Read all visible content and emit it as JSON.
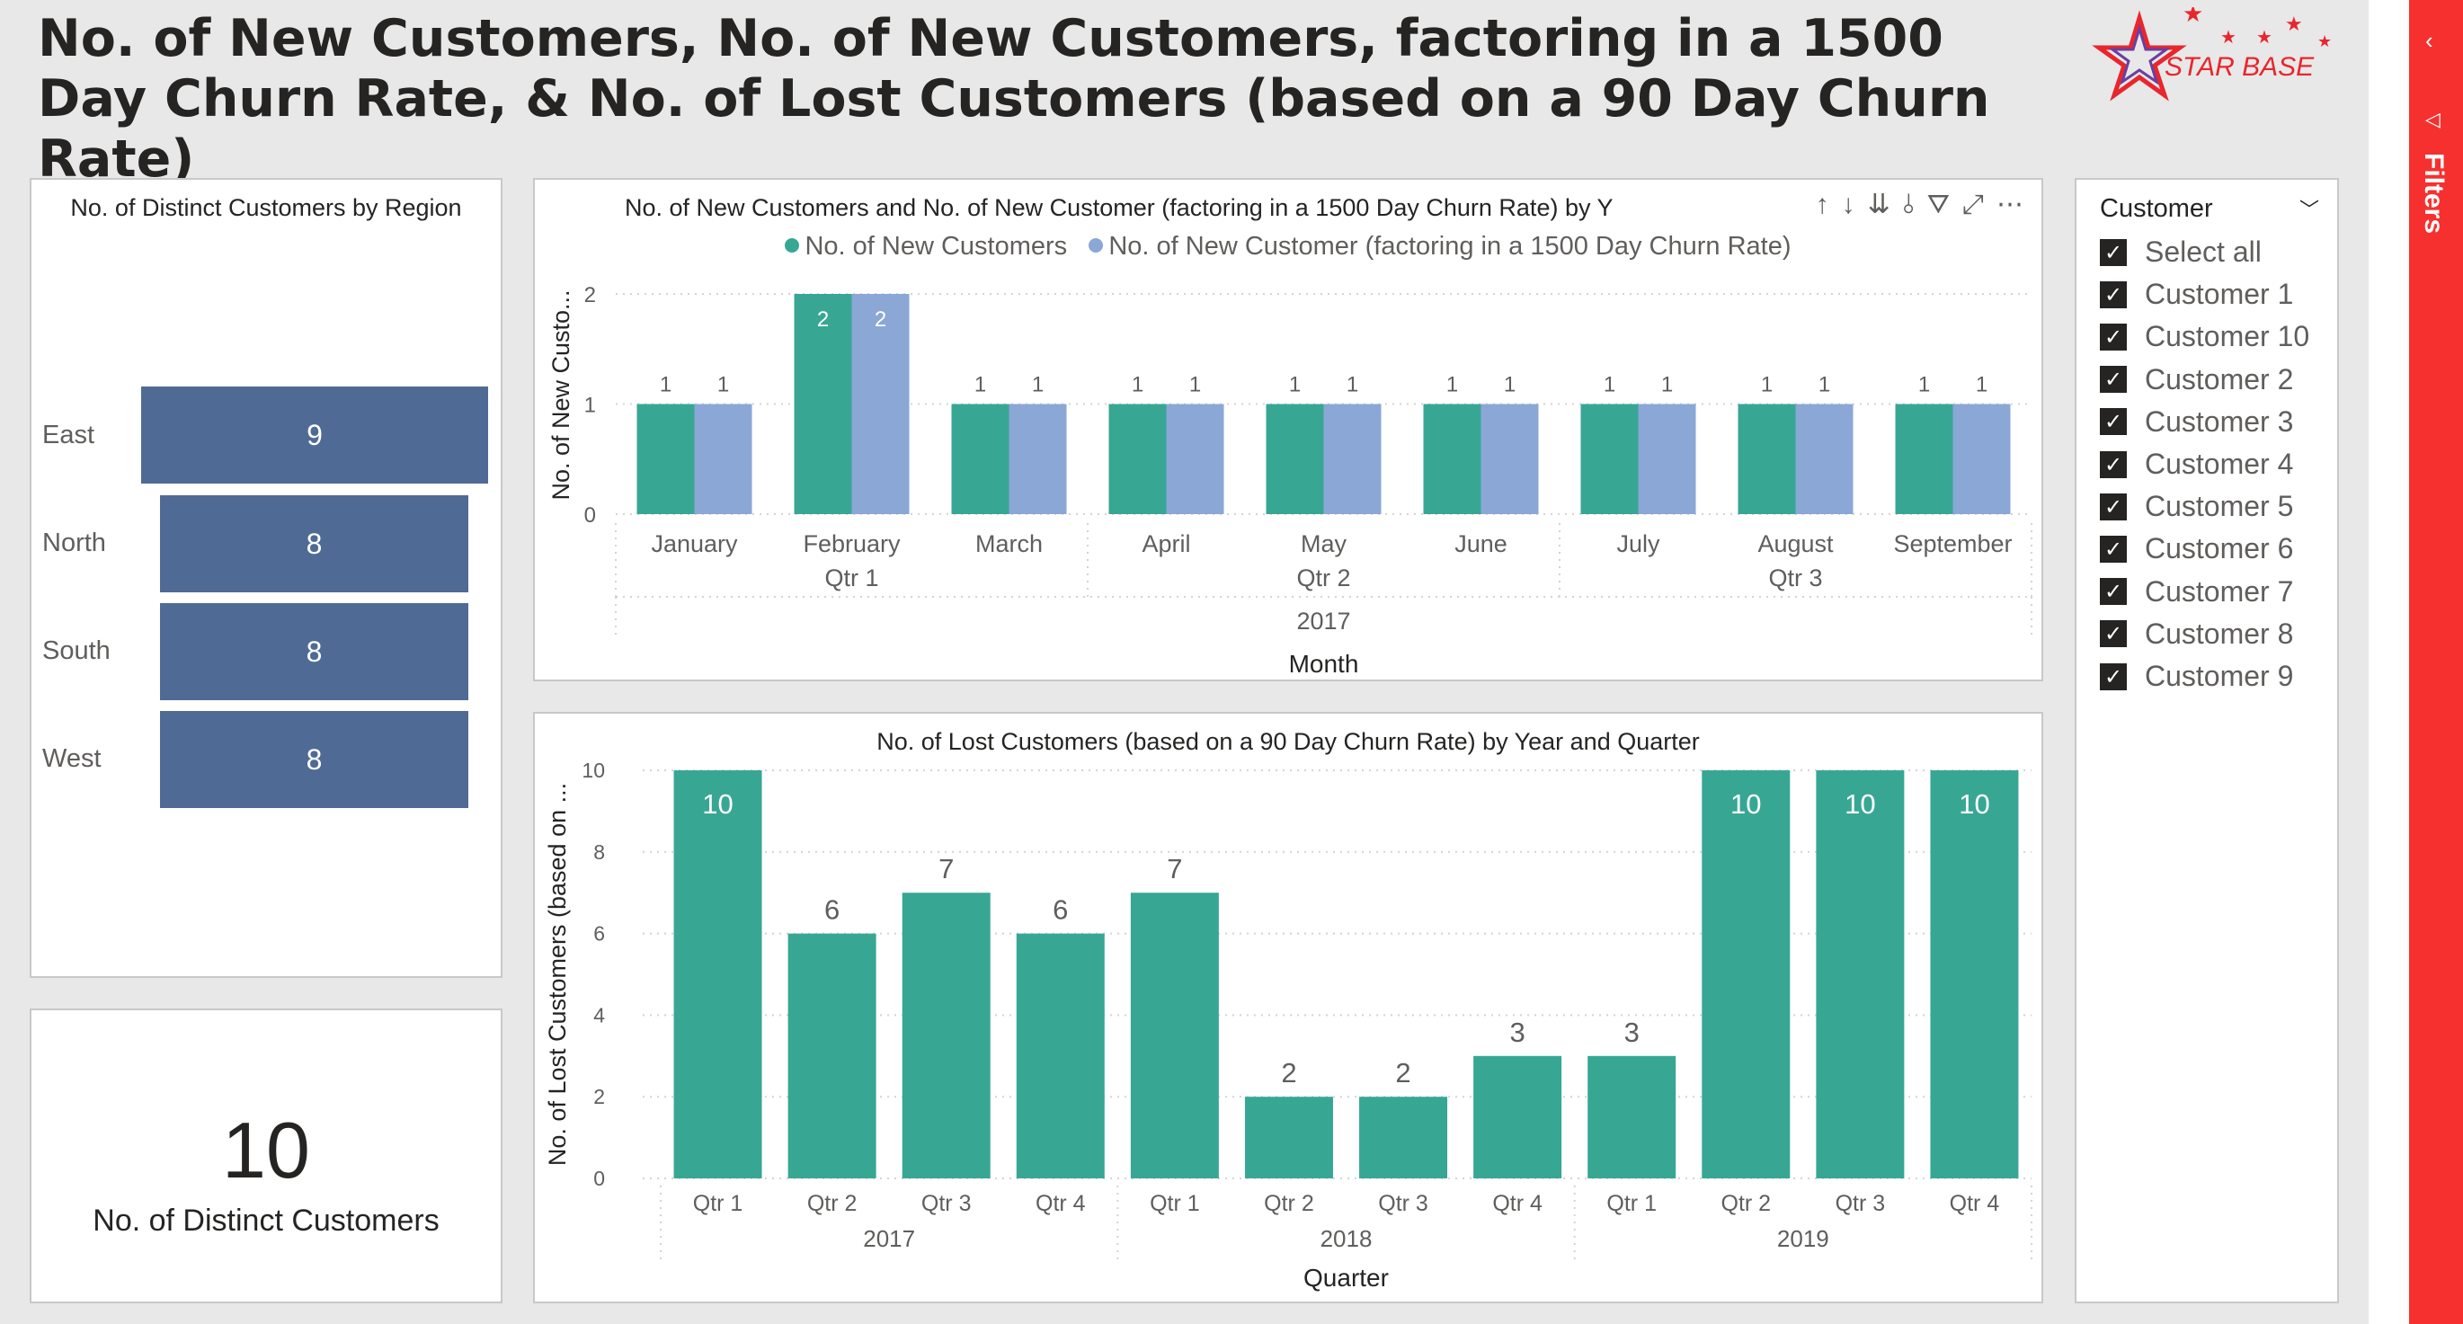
{
  "report": {
    "title": "No. of New Customers, No. of New Customers, factoring in a 1500 Day Churn Rate, & No. of Lost Customers (based on a 90 Day Churn Rate)",
    "logo_text": "STAR BASE"
  },
  "region_chart": {
    "title": "No. of Distinct Customers by Region",
    "regions": [
      {
        "label": "East",
        "value": "9"
      },
      {
        "label": "North",
        "value": "8"
      },
      {
        "label": "South",
        "value": "8"
      },
      {
        "label": "West",
        "value": "8"
      }
    ],
    "bar_color": "#4f6b95"
  },
  "kpi": {
    "value": "10",
    "label": "No. of Distinct Customers"
  },
  "new_customers_chart": {
    "title": "No. of New Customers and No. of New Customer (factoring in a 1500 Day Churn Rate) by Y",
    "legend": [
      "No. of New Customers",
      "No. of New Customer (factoring in a 1500 Day Churn Rate)"
    ],
    "toolbar_icons": [
      "arrow-up-icon",
      "arrow-down-icon",
      "double-arrow-down-icon",
      "expand-hierarchy-icon",
      "filter-icon",
      "focus-mode-icon",
      "more-options-icon"
    ]
  },
  "lost_customers_chart": {
    "title": "No. of Lost Customers (based on a 90 Day Churn Rate) by Year and Quarter"
  },
  "slicer": {
    "title": "Customer",
    "items": [
      "Select all",
      "Customer 1",
      "Customer 10",
      "Customer 2",
      "Customer 3",
      "Customer 4",
      "Customer 5",
      "Customer 6",
      "Customer 7",
      "Customer 8",
      "Customer 9"
    ]
  },
  "filters_pane": {
    "label": "Filters"
  },
  "colors": {
    "teal": "#37a794",
    "light_blue": "#8aa7d6",
    "filters_red": "#f6302e",
    "region_blue": "#4f6b95"
  },
  "chart_data": [
    {
      "type": "bar",
      "title": "No. of New Customers and No. of New Customer (factoring in a 1500 Day Churn Rate) by Y",
      "categories": [
        "January",
        "February",
        "March",
        "April",
        "May",
        "June",
        "July",
        "August",
        "September"
      ],
      "quarter_labels": [
        "Qtr 1",
        "Qtr 2",
        "Qtr 3"
      ],
      "year_label": "2017",
      "series": [
        {
          "name": "No. of New Customers",
          "values": [
            1,
            2,
            1,
            1,
            1,
            1,
            1,
            1,
            1
          ],
          "color": "#37a794"
        },
        {
          "name": "No. of New Customer (factoring in a 1500 Day Churn Rate)",
          "values": [
            1,
            2,
            1,
            1,
            1,
            1,
            1,
            1,
            1
          ],
          "color": "#8aa7d6"
        }
      ],
      "ylim": [
        0,
        2
      ],
      "yticks": [
        0,
        1,
        2
      ],
      "xlabel": "Month",
      "ylabel": "No. of New Custo...",
      "grid": true,
      "legend_position": "top"
    },
    {
      "type": "bar",
      "title": "No. of Lost Customers (based on a 90 Day Churn Rate) by Year and Quarter",
      "categories": [
        "Qtr 1",
        "Qtr 2",
        "Qtr 3",
        "Qtr 4",
        "Qtr 1",
        "Qtr 2",
        "Qtr 3",
        "Qtr 4",
        "Qtr 1",
        "Qtr 2",
        "Qtr 3",
        "Qtr 4"
      ],
      "year_labels": [
        "2017",
        "2018",
        "2019"
      ],
      "values": [
        10,
        6,
        7,
        6,
        7,
        2,
        2,
        3,
        3,
        10,
        10,
        10
      ],
      "color": "#37a794",
      "ylim": [
        0,
        10
      ],
      "yticks": [
        0,
        2,
        4,
        6,
        8,
        10
      ],
      "xlabel": "Quarter",
      "ylabel": "No. of Lost Customers (based on ...",
      "grid": true
    },
    {
      "type": "bar",
      "title": "No. of Distinct Customers by Region",
      "categories": [
        "East",
        "North",
        "South",
        "West"
      ],
      "values": [
        9,
        8,
        8,
        8
      ],
      "orientation": "horizontal"
    }
  ]
}
